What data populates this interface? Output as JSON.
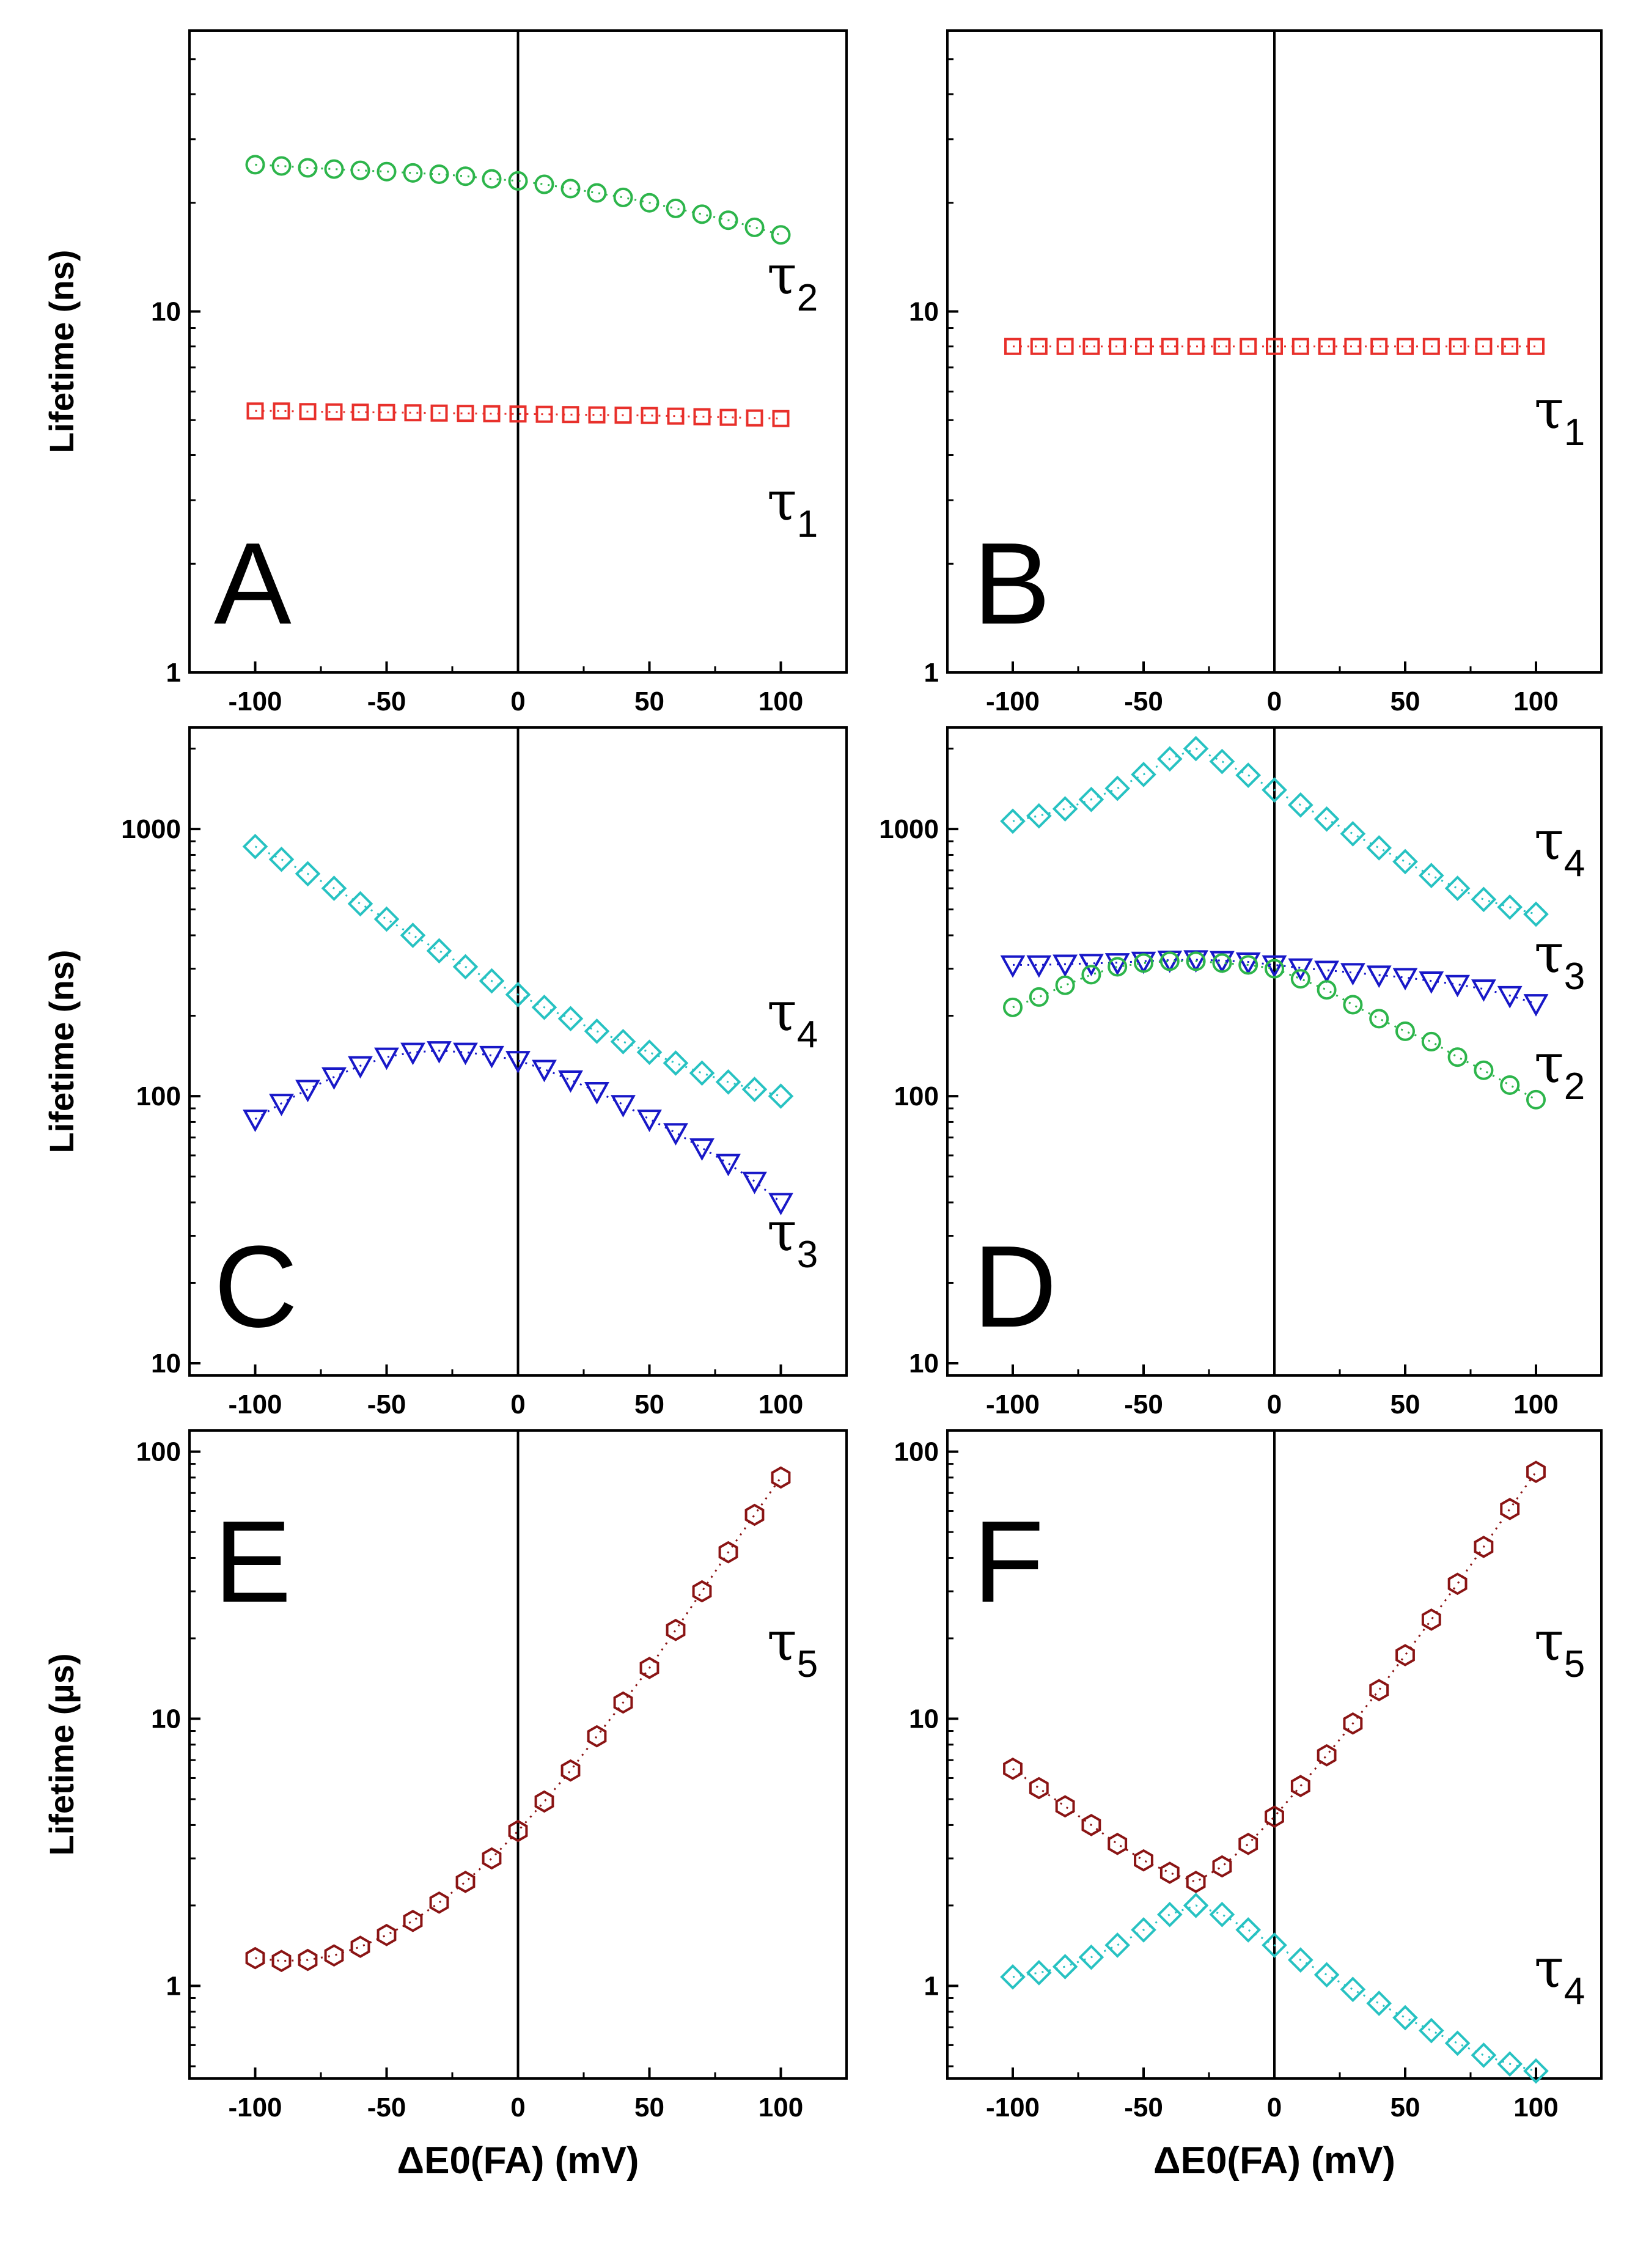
{
  "chart_data": [
    {
      "panel": "A",
      "type": "scatter",
      "yscale": "log",
      "ylim": [
        1,
        60
      ],
      "xlim": [
        -125,
        125
      ],
      "yticks": [
        "1",
        "10"
      ],
      "xticks": [
        "-100",
        "-50",
        "0",
        "50",
        "100"
      ],
      "ylabel": "Lifetime (ns)",
      "series": [
        {
          "label": "2",
          "marker": "circle",
          "color": "#2db54b",
          "x": [
            -100,
            -90,
            -80,
            -70,
            -60,
            -50,
            -40,
            -30,
            -20,
            -10,
            0,
            10,
            20,
            30,
            40,
            50,
            60,
            70,
            80,
            90,
            100
          ],
          "y": [
            25.5,
            25.3,
            25.0,
            24.8,
            24.6,
            24.4,
            24.2,
            24.0,
            23.7,
            23.3,
            23.0,
            22.5,
            21.9,
            21.3,
            20.7,
            20.0,
            19.3,
            18.6,
            17.9,
            17.1,
            16.3
          ]
        },
        {
          "label": "1",
          "marker": "square",
          "color": "#e8302b",
          "x": [
            -100,
            -90,
            -80,
            -70,
            -60,
            -50,
            -40,
            -30,
            -20,
            -10,
            0,
            10,
            20,
            30,
            40,
            50,
            60,
            70,
            80,
            90,
            100
          ],
          "y": [
            5.3,
            5.3,
            5.28,
            5.27,
            5.26,
            5.25,
            5.24,
            5.23,
            5.22,
            5.21,
            5.2,
            5.19,
            5.18,
            5.17,
            5.16,
            5.15,
            5.13,
            5.11,
            5.09,
            5.07,
            5.05
          ]
        }
      ]
    },
    {
      "panel": "B",
      "type": "scatter",
      "yscale": "log",
      "ylim": [
        1,
        60
      ],
      "xlim": [
        -125,
        125
      ],
      "yticks": [
        "1",
        "10"
      ],
      "xticks": [
        "-100",
        "-50",
        "0",
        "50",
        "100"
      ],
      "ylabel": "",
      "series": [
        {
          "label": "1",
          "marker": "square",
          "color": "#e8302b",
          "x": [
            -100,
            -90,
            -80,
            -70,
            -60,
            -50,
            -40,
            -30,
            -20,
            -10,
            0,
            10,
            20,
            30,
            40,
            50,
            60,
            70,
            80,
            90,
            100
          ],
          "y": [
            8.0,
            8.0,
            8.0,
            8.0,
            8.0,
            8.0,
            8.0,
            8.0,
            8.0,
            8.0,
            8.0,
            8.0,
            8.0,
            8.0,
            8.0,
            8.0,
            8.0,
            8.0,
            8.0,
            8.0,
            8.0
          ]
        }
      ]
    },
    {
      "panel": "C",
      "type": "scatter",
      "yscale": "log",
      "ylim": [
        9,
        2400
      ],
      "xlim": [
        -125,
        125
      ],
      "yticks": [
        "10",
        "100",
        "1000"
      ],
      "xticks": [
        "-100",
        "-50",
        "0",
        "50",
        "100"
      ],
      "ylabel": "Lifetime (ns)",
      "series": [
        {
          "label": "4",
          "marker": "diamond",
          "color": "#27c2c2",
          "x": [
            -100,
            -90,
            -80,
            -70,
            -60,
            -50,
            -40,
            -30,
            -20,
            -10,
            0,
            10,
            20,
            30,
            40,
            50,
            60,
            70,
            80,
            90,
            100
          ],
          "y": [
            860,
            770,
            680,
            600,
            525,
            460,
            400,
            350,
            305,
            270,
            240,
            215,
            195,
            175,
            160,
            146,
            133,
            122,
            113,
            106,
            100
          ]
        },
        {
          "label": "3",
          "marker": "triangle-down",
          "color": "#1818c8",
          "x": [
            -100,
            -90,
            -80,
            -70,
            -60,
            -50,
            -40,
            -30,
            -20,
            -10,
            0,
            10,
            20,
            30,
            40,
            50,
            60,
            70,
            80,
            90,
            100
          ],
          "y": [
            82,
            94,
            106,
            118,
            130,
            140,
            146,
            148,
            146,
            142,
            136,
            126,
            115,
            104,
            93,
            82,
            73,
            64,
            56,
            48,
            40
          ]
        }
      ]
    },
    {
      "panel": "D",
      "type": "scatter",
      "yscale": "log",
      "ylim": [
        9,
        2400
      ],
      "xlim": [
        -125,
        125
      ],
      "yticks": [
        "10",
        "100",
        "1000"
      ],
      "xticks": [
        "-100",
        "-50",
        "0",
        "50",
        "100"
      ],
      "ylabel": "",
      "series": [
        {
          "label": "4",
          "marker": "diamond",
          "color": "#27c2c2",
          "x": [
            -100,
            -90,
            -80,
            -70,
            -60,
            -50,
            -40,
            -30,
            -20,
            -10,
            0,
            10,
            20,
            30,
            40,
            50,
            60,
            70,
            80,
            90,
            100
          ],
          "y": [
            1070,
            1120,
            1190,
            1290,
            1420,
            1600,
            1830,
            2000,
            1790,
            1590,
            1400,
            1230,
            1090,
            960,
            850,
            755,
            670,
            600,
            545,
            510,
            480
          ]
        },
        {
          "label": "3",
          "marker": "triangle-down",
          "color": "#1818c8",
          "x": [
            -100,
            -90,
            -80,
            -70,
            -60,
            -50,
            -40,
            -30,
            -20,
            -10,
            0,
            10,
            20,
            30,
            40,
            50,
            60,
            70,
            80,
            90,
            100
          ],
          "y": [
            310,
            310,
            312,
            314,
            316,
            320,
            323,
            324,
            322,
            318,
            310,
            302,
            296,
            290,
            284,
            278,
            270,
            262,
            252,
            238,
            222
          ]
        },
        {
          "label": "2",
          "marker": "circle",
          "color": "#2db54b",
          "x": [
            -100,
            -90,
            -80,
            -70,
            -60,
            -50,
            -40,
            -30,
            -20,
            -10,
            0,
            10,
            20,
            30,
            40,
            50,
            60,
            70,
            80,
            90,
            100
          ],
          "y": [
            215,
            235,
            260,
            285,
            305,
            315,
            320,
            320,
            315,
            310,
            300,
            275,
            250,
            220,
            195,
            175,
            160,
            140,
            125,
            110,
            97
          ]
        }
      ]
    },
    {
      "panel": "E",
      "type": "scatter",
      "yscale": "log",
      "ylim": [
        0.45,
        120
      ],
      "xlim": [
        -125,
        125
      ],
      "yticks": [
        "1",
        "10",
        "100"
      ],
      "xticks": [
        "-100",
        "-50",
        "0",
        "50",
        "100"
      ],
      "ylabel": "Lifetime (µs)",
      "xlabel": "ΔE0(FA) (mV)",
      "series": [
        {
          "label": "5",
          "marker": "hexagon",
          "color": "#8a1414",
          "x": [
            -100,
            -90,
            -80,
            -70,
            -60,
            -50,
            -40,
            -30,
            -20,
            -10,
            0,
            10,
            20,
            30,
            40,
            50,
            60,
            70,
            80,
            90,
            100
          ],
          "y": [
            1.27,
            1.24,
            1.25,
            1.3,
            1.4,
            1.55,
            1.75,
            2.05,
            2.45,
            3.0,
            3.8,
            4.9,
            6.4,
            8.6,
            11.5,
            15.5,
            21.5,
            30,
            42,
            58,
            80
          ]
        }
      ]
    },
    {
      "panel": "F",
      "type": "scatter",
      "yscale": "log",
      "ylim": [
        0.45,
        120
      ],
      "xlim": [
        -125,
        125
      ],
      "yticks": [
        "1",
        "10",
        "100"
      ],
      "xticks": [
        "-100",
        "-50",
        "0",
        "50",
        "100"
      ],
      "ylabel": "",
      "xlabel": "ΔE0(FA) (mV)",
      "series": [
        {
          "label": "5",
          "marker": "hexagon",
          "color": "#8a1414",
          "x": [
            -100,
            -90,
            -80,
            -70,
            -60,
            -50,
            -40,
            -30,
            -20,
            -10,
            0,
            10,
            20,
            30,
            40,
            50,
            60,
            70,
            80,
            90,
            100
          ],
          "y": [
            6.5,
            5.5,
            4.7,
            4.0,
            3.4,
            2.95,
            2.65,
            2.45,
            2.8,
            3.4,
            4.3,
            5.6,
            7.3,
            9.6,
            12.8,
            17.3,
            23.5,
            32,
            44,
            61,
            84
          ]
        },
        {
          "label": "4",
          "marker": "diamond",
          "color": "#27c2c2",
          "x": [
            -100,
            -90,
            -80,
            -70,
            -60,
            -50,
            -40,
            -30,
            -20,
            -10,
            0,
            10,
            20,
            30,
            40,
            50,
            60,
            70,
            80,
            90,
            100
          ],
          "y": [
            1.08,
            1.12,
            1.18,
            1.28,
            1.42,
            1.62,
            1.85,
            2.0,
            1.85,
            1.62,
            1.42,
            1.25,
            1.1,
            0.97,
            0.86,
            0.76,
            0.68,
            0.61,
            0.55,
            0.51,
            0.48
          ]
        }
      ]
    }
  ]
}
